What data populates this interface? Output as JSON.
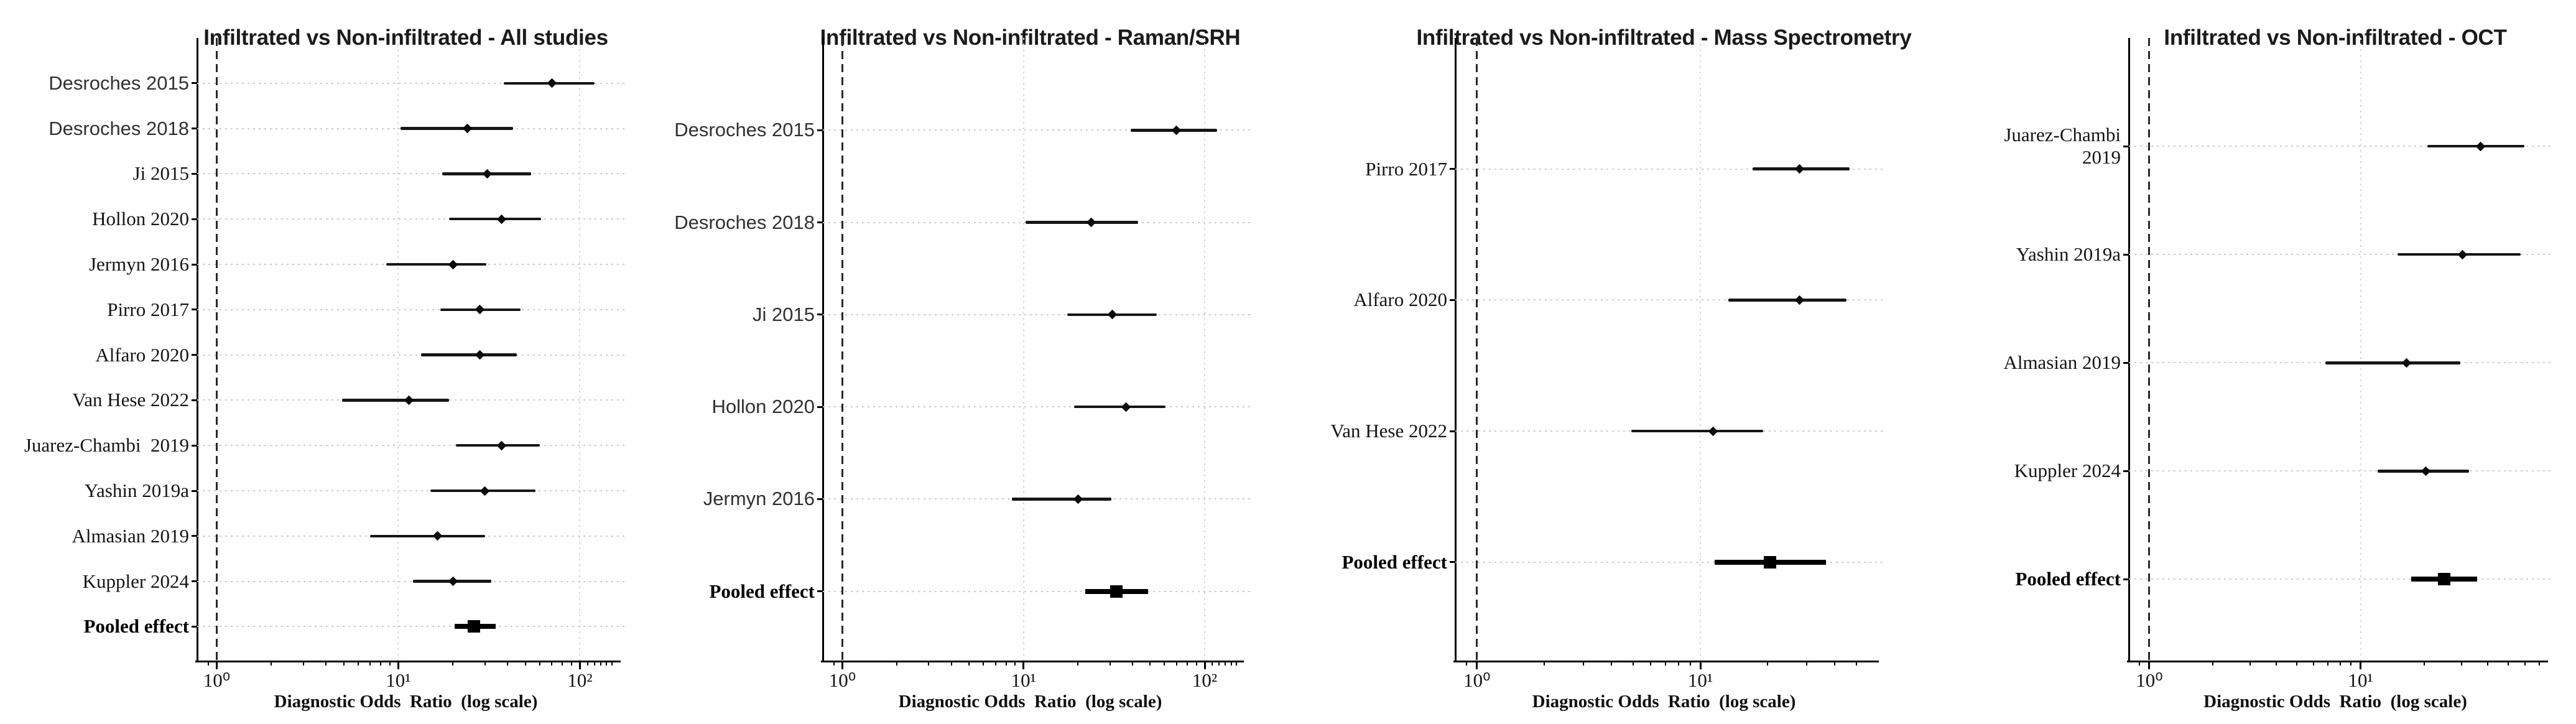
{
  "figure": {
    "background": "#ffffff",
    "text_color": "#151515",
    "grid_color": "#cbcbcb",
    "ref_line_color": "#282828",
    "marker_color": "#0b0b0b"
  },
  "chart_data": [
    {
      "type": "forest",
      "title": "Infiltrated vs Non-infiltrated - All studies",
      "xlabel": "Diagnostic Odds  Ratio  (log scale)",
      "xscale": "log",
      "xlim": [
        0.78,
        155
      ],
      "major_ticks": [
        1,
        10,
        100
      ],
      "tick_labels": [
        "10⁰",
        "10¹",
        "10²"
      ],
      "ref_line": 1,
      "grid": true,
      "studies": [
        {
          "label": "Desroches 2015",
          "or": 70,
          "ci_low": 38,
          "ci_high": 120,
          "font": "sans",
          "pooled": false
        },
        {
          "label": "Desroches 2018",
          "or": 24,
          "ci_low": 10.3,
          "ci_high": 43,
          "font": "sans",
          "pooled": false
        },
        {
          "label": "Ji 2015",
          "or": 31,
          "ci_low": 17.4,
          "ci_high": 54,
          "font": "serif",
          "pooled": false
        },
        {
          "label": "Hollon 2020",
          "or": 37,
          "ci_low": 19,
          "ci_high": 61,
          "font": "serif",
          "pooled": false
        },
        {
          "label": "Jermyn 2016",
          "or": 20,
          "ci_low": 8.6,
          "ci_high": 30.5,
          "font": "serif",
          "pooled": false
        },
        {
          "label": "Pirro 2017",
          "or": 28,
          "ci_low": 17,
          "ci_high": 47,
          "font": "serif",
          "pooled": false
        },
        {
          "label": "Alfaro 2020",
          "or": 28,
          "ci_low": 13.3,
          "ci_high": 45,
          "font": "serif",
          "pooled": false
        },
        {
          "label": "Van Hese 2022",
          "or": 11.4,
          "ci_low": 4.9,
          "ci_high": 19,
          "font": "serif",
          "pooled": false
        },
        {
          "label": "Juarez-Chambi  2019",
          "or": 37,
          "ci_low": 20.7,
          "ci_high": 60,
          "font": "serif",
          "pooled": false
        },
        {
          "label": "Yashin 2019a",
          "or": 30,
          "ci_low": 15,
          "ci_high": 57,
          "font": "serif",
          "pooled": false
        },
        {
          "label": "Almasian 2019",
          "or": 16.5,
          "ci_low": 7,
          "ci_high": 30,
          "font": "serif",
          "pooled": false
        },
        {
          "label": "Kuppler 2024",
          "or": 20,
          "ci_low": 12,
          "ci_high": 32.5,
          "font": "serif",
          "pooled": false
        },
        {
          "label": "Pooled effect",
          "or": 26,
          "ci_low": 20.5,
          "ci_high": 34.5,
          "font": "serif",
          "pooled": true
        }
      ]
    },
    {
      "type": "forest",
      "title": "Infiltrated vs Non-infiltrated - Raman/SRH",
      "xlabel": "Diagnostic Odds  Ratio  (log scale)",
      "xscale": "log",
      "xlim": [
        0.78,
        152
      ],
      "major_ticks": [
        1,
        10,
        100
      ],
      "tick_labels": [
        "10⁰",
        "10¹",
        "10²"
      ],
      "ref_line": 1,
      "grid": true,
      "studies": [
        {
          "label": "Desroches 2015",
          "or": 70,
          "ci_low": 39,
          "ci_high": 117,
          "font": "sans",
          "pooled": false
        },
        {
          "label": "Desroches 2018",
          "or": 23.7,
          "ci_low": 10.3,
          "ci_high": 43,
          "font": "sans",
          "pooled": false
        },
        {
          "label": "Ji 2015",
          "or": 30.8,
          "ci_low": 17.4,
          "ci_high": 54.3,
          "font": "sans",
          "pooled": false
        },
        {
          "label": "Hollon 2020",
          "or": 36.9,
          "ci_low": 19,
          "ci_high": 61,
          "font": "sans",
          "pooled": false
        },
        {
          "label": "Jermyn 2016",
          "or": 20,
          "ci_low": 8.6,
          "ci_high": 30.5,
          "font": "sans",
          "pooled": false
        },
        {
          "label": "Pooled effect",
          "or": 32.6,
          "ci_low": 22,
          "ci_high": 48.7,
          "font": "serif",
          "pooled": true
        }
      ]
    },
    {
      "type": "forest",
      "title": "Infiltrated vs Non-infiltrated - Mass Spectrometry",
      "xlabel": "Diagnostic Odds  Ratio  (log scale)",
      "xscale": "log",
      "xlim": [
        0.8,
        59
      ],
      "major_ticks": [
        1,
        10
      ],
      "tick_labels": [
        "10⁰",
        "10¹"
      ],
      "ref_line": 1,
      "grid": true,
      "studies": [
        {
          "label": "Pirro 2017",
          "or": 27.7,
          "ci_low": 17.1,
          "ci_high": 46.6,
          "font": "serif",
          "pooled": false
        },
        {
          "label": "Alfaro 2020",
          "or": 27.7,
          "ci_low": 13.3,
          "ci_high": 45.1,
          "font": "serif",
          "pooled": false
        },
        {
          "label": "Van Hese 2022",
          "or": 11.4,
          "ci_low": 4.9,
          "ci_high": 19.1,
          "font": "serif",
          "pooled": false
        },
        {
          "label": "Pooled effect",
          "or": 20.5,
          "ci_low": 11.6,
          "ci_high": 36.6,
          "font": "serif",
          "pooled": true
        }
      ]
    },
    {
      "type": "forest",
      "title": "Infiltrated vs Non-infiltrated - OCT",
      "xlabel": "Diagnostic Odds  Ratio  (log scale)",
      "xscale": "log",
      "xlim": [
        0.8,
        72
      ],
      "major_ticks": [
        1,
        10
      ],
      "tick_labels": [
        "10⁰",
        "10¹"
      ],
      "ref_line": 1,
      "grid": true,
      "studies": [
        {
          "label": "Juarez-Chambi\n2019",
          "or": 37,
          "ci_low": 20.7,
          "ci_high": 59.6,
          "font": "serif",
          "pooled": false
        },
        {
          "label": "Yashin 2019a",
          "or": 30.4,
          "ci_low": 14.9,
          "ci_high": 57,
          "font": "serif",
          "pooled": false
        },
        {
          "label": "Almasian 2019",
          "or": 16.5,
          "ci_low": 6.8,
          "ci_high": 29.7,
          "font": "serif",
          "pooled": false
        },
        {
          "label": "Kuppler 2024",
          "or": 20.3,
          "ci_low": 12,
          "ci_high": 32.5,
          "font": "serif",
          "pooled": false
        },
        {
          "label": "Pooled effect",
          "or": 24.9,
          "ci_low": 17.4,
          "ci_high": 35.7,
          "font": "serif",
          "pooled": true
        }
      ]
    }
  ]
}
